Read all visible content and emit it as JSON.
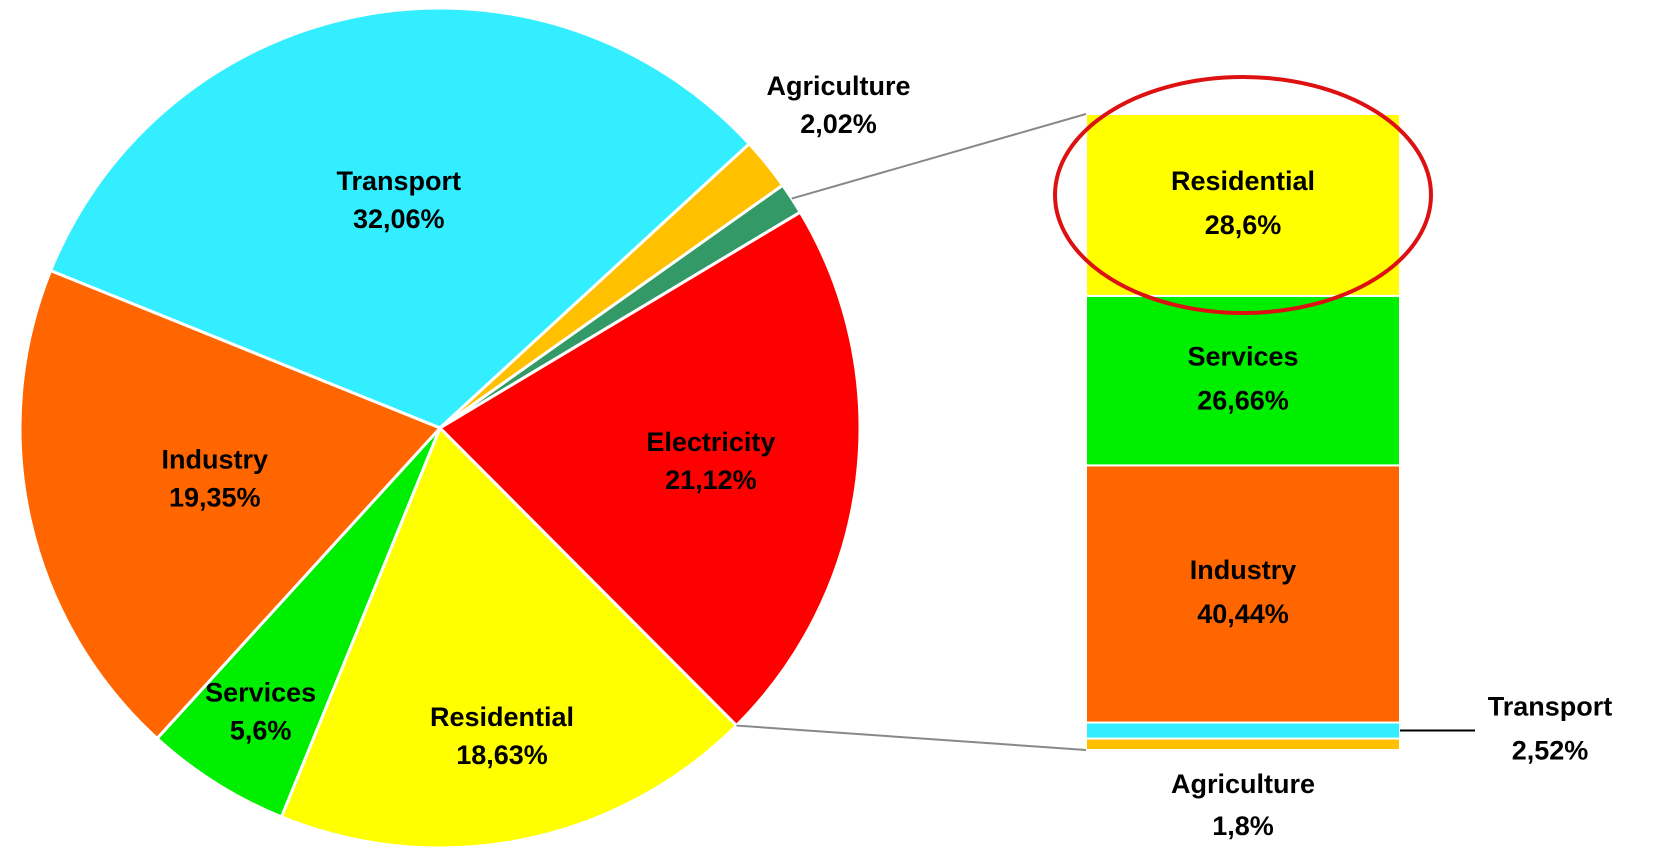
{
  "chart_data": [
    {
      "type": "pie",
      "categories": [
        "Transport",
        "Agriculture",
        null,
        "Electricity",
        "Residential",
        "Services",
        "Industry"
      ],
      "values": [
        32.06,
        2.02,
        1.22,
        21.12,
        18.63,
        5.6,
        19.35
      ],
      "value_labels": [
        "32,06%",
        "2,02%",
        null,
        "21,12%",
        "18,63%",
        "5,6%",
        "19,35%"
      ],
      "colors": [
        "#33eeff",
        "#ffc000",
        "#339966",
        "#ff0000",
        "#ffff00",
        "#00ee00",
        "#ff6600"
      ]
    },
    {
      "type": "stacked_bar",
      "categories": [
        "Residential",
        "Services",
        "Industry",
        "Transport",
        "Agriculture"
      ],
      "values": [
        28.6,
        26.66,
        40.44,
        2.52,
        1.8
      ],
      "value_labels": [
        "28,6%",
        "26,66%",
        "40,44%",
        "2,52%",
        "1,8%"
      ],
      "colors": [
        "#ffff00",
        "#00ee00",
        "#ff6600",
        "#33eeff",
        "#ffc000"
      ]
    }
  ]
}
